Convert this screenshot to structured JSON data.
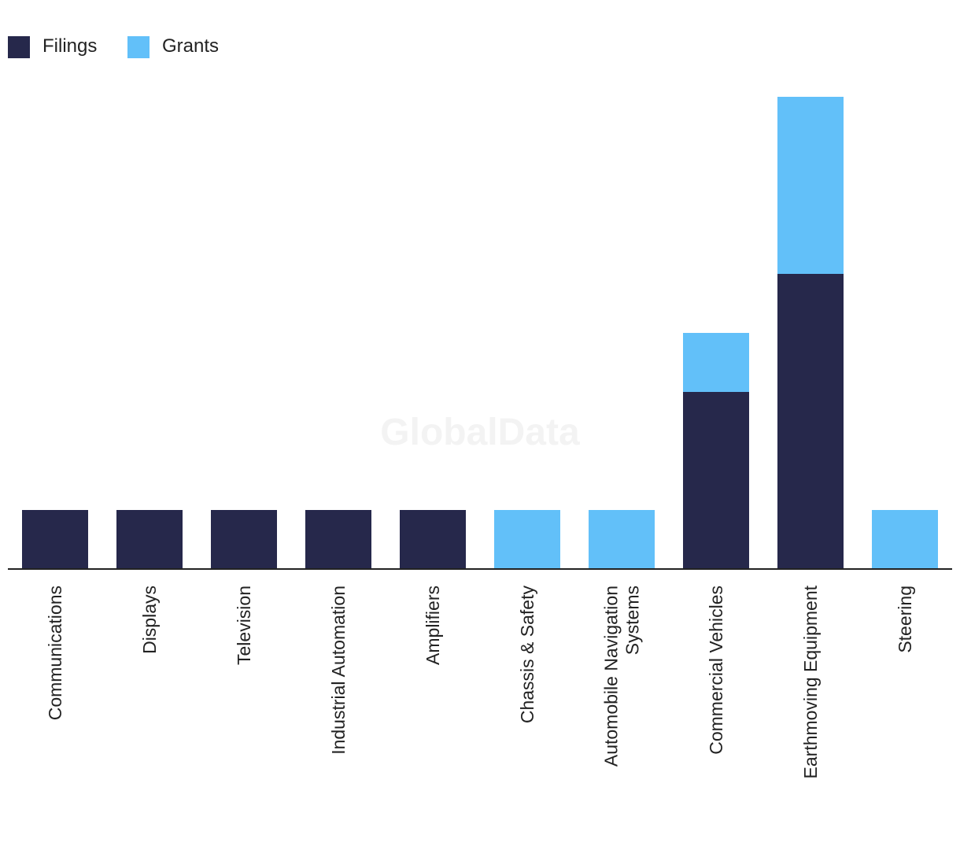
{
  "watermark": "GlobalData",
  "chart_data": {
    "type": "bar",
    "stacked": true,
    "title": "",
    "xlabel": "",
    "ylabel": "",
    "ylim": [
      0,
      8
    ],
    "grid": false,
    "legend_position": "top-left",
    "categories": [
      "Communications",
      "Displays",
      "Television",
      "Industrial Automation",
      "Amplifiers",
      "Chassis & Safety",
      "Automobile Navigation Systems",
      "Commercial Vehicles",
      "Earthmoving Equipment",
      "Steering"
    ],
    "series": [
      {
        "name": "Filings",
        "color": "#26284b",
        "values": [
          1,
          1,
          1,
          1,
          1,
          0,
          0,
          3,
          5,
          0
        ]
      },
      {
        "name": "Grants",
        "color": "#62c0f9",
        "values": [
          0,
          0,
          0,
          0,
          0,
          1,
          1,
          1,
          3,
          1
        ]
      }
    ]
  }
}
